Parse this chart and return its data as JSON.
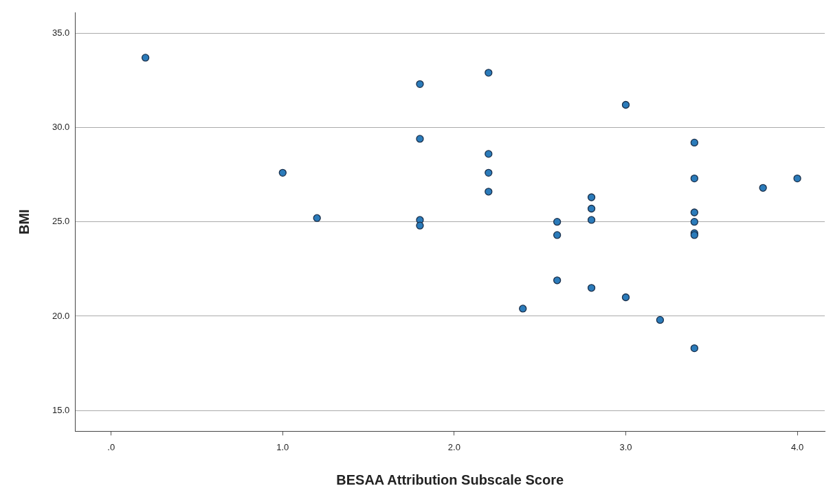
{
  "chart_data": {
    "type": "scatter",
    "xlabel": "BESAA Attribution Subscale Score",
    "ylabel": "BMI",
    "x": [
      0.2,
      1.0,
      1.2,
      1.8,
      1.8,
      1.8,
      1.8,
      2.2,
      2.2,
      2.2,
      2.2,
      2.4,
      2.6,
      2.6,
      2.6,
      2.8,
      2.8,
      2.8,
      2.8,
      3.0,
      3.0,
      3.2,
      3.4,
      3.4,
      3.4,
      3.4,
      3.4,
      3.4,
      3.4,
      3.8,
      4.0
    ],
    "values": [
      33.7,
      27.6,
      25.2,
      32.3,
      29.4,
      25.1,
      24.8,
      32.9,
      28.6,
      27.6,
      26.6,
      20.4,
      25.0,
      24.3,
      21.9,
      26.3,
      25.7,
      25.1,
      21.5,
      31.2,
      21.0,
      19.8,
      29.2,
      27.3,
      25.5,
      25.0,
      24.4,
      24.3,
      18.3,
      26.8,
      27.3
    ],
    "color": "#2b7bba",
    "marker": "circle",
    "grid": "y",
    "xlim": [
      -0.21,
      4.16
    ],
    "ylim": [
      13.9,
      36.1
    ],
    "xticks": [
      {
        "value": 0,
        "label": ".0"
      },
      {
        "value": 1,
        "label": "1.0"
      },
      {
        "value": 2,
        "label": "2.0"
      },
      {
        "value": 3,
        "label": "3.0"
      },
      {
        "value": 4,
        "label": "4.0"
      }
    ],
    "yticks": [
      {
        "value": 15,
        "label": "15.0"
      },
      {
        "value": 20,
        "label": "20.0"
      },
      {
        "value": 25,
        "label": "25.0"
      },
      {
        "value": 30,
        "label": "30.0"
      },
      {
        "value": 35,
        "label": "35.0"
      }
    ]
  }
}
